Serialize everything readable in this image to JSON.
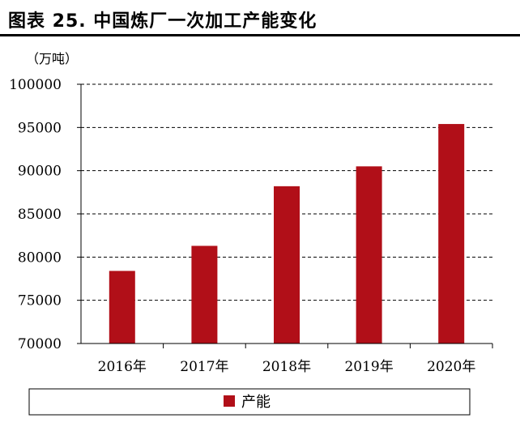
{
  "header": {
    "title": "图表 25. 中国炼厂一次加工产能变化"
  },
  "colors": {
    "bar": "#b10f18",
    "grid": "#000000"
  },
  "chart_data": {
    "type": "bar",
    "title": "图表 25. 中国炼厂一次加工产能变化",
    "unit_label": "（万吨）",
    "categories": [
      "2016年",
      "2017年",
      "2018年",
      "2019年",
      "2020年"
    ],
    "series": [
      {
        "name": "产能",
        "values": [
          78400,
          81300,
          88200,
          90500,
          95400
        ]
      }
    ],
    "y_ticks": [
      "70000",
      "75000",
      "80000",
      "85000",
      "90000",
      "95000",
      "100000"
    ],
    "ylim": [
      70000,
      100000
    ],
    "grid": "horizontal dashed",
    "legend_position": "bottom"
  }
}
